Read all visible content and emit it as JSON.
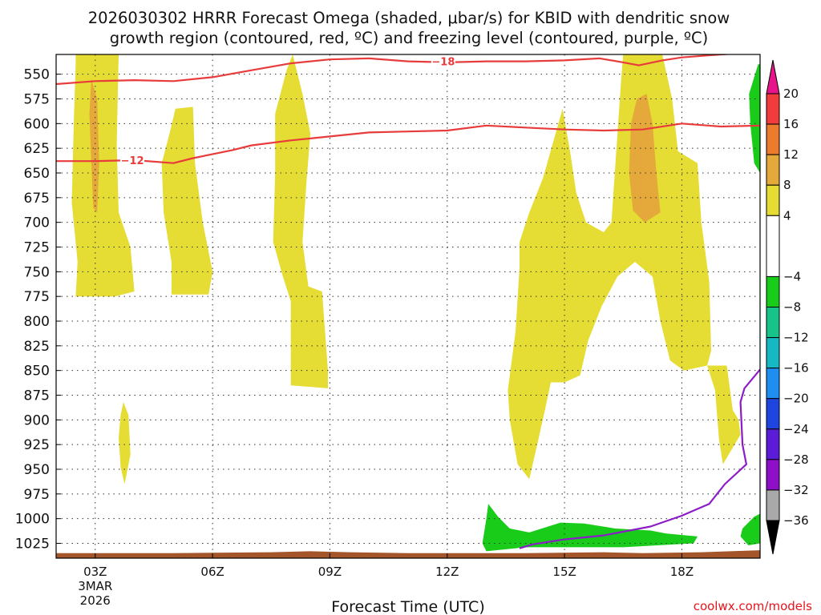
{
  "title_line1": "2026030302 HRRR Forecast Omega (shaded, μbar/s) for KBID with dendritic snow",
  "title_line2": "growth region (contoured, red, ºC) and freezing level (contoured, purple, ºC)",
  "credit": "coolwx.com/models",
  "chart_data": {
    "type": "heatmap",
    "title": "2026030302 HRRR Forecast Omega (shaded, μbar/s) for KBID with dendritic snow growth region (contoured, red, ºC) and freezing level (contoured, purple, ºC)",
    "xlabel": "Forecast Time (UTC)",
    "ylabel": "",
    "x_unit": "hours UTC",
    "xlim": [
      2.0,
      20.0
    ],
    "x_ticks": [
      {
        "x": 3,
        "label": "03Z",
        "sub1": "3MAR",
        "sub2": "2026"
      },
      {
        "x": 6,
        "label": "06Z"
      },
      {
        "x": 9,
        "label": "09Z"
      },
      {
        "x": 12,
        "label": "12Z"
      },
      {
        "x": 15,
        "label": "15Z"
      },
      {
        "x": 18,
        "label": "18Z"
      }
    ],
    "y_unit": "hPa",
    "ylim": [
      1040,
      530
    ],
    "y_ticks": [
      550,
      575,
      600,
      625,
      650,
      675,
      700,
      725,
      750,
      775,
      800,
      825,
      850,
      875,
      900,
      925,
      950,
      975,
      1000,
      1025
    ],
    "grid": true,
    "colorbar": {
      "labels": [
        "20",
        "16",
        "12",
        "8",
        "4",
        "−4",
        "−8",
        "−12",
        "−16",
        "−20",
        "−24",
        "−28",
        "−32",
        "−36"
      ],
      "bands": [
        {
          "from": 16,
          "to": 20,
          "color": "#f03c3c"
        },
        {
          "from": 12,
          "to": 16,
          "color": "#ec7b2e"
        },
        {
          "from": 8,
          "to": 12,
          "color": "#e4a93a"
        },
        {
          "from": 4,
          "to": 8,
          "color": "#e5dc34"
        },
        {
          "from": -4,
          "to": 4,
          "color": "#ffffff"
        },
        {
          "from": -8,
          "to": -4,
          "color": "#19cc19"
        },
        {
          "from": -12,
          "to": -8,
          "color": "#18c38a"
        },
        {
          "from": -16,
          "to": -12,
          "color": "#16b8c4"
        },
        {
          "from": -20,
          "to": -16,
          "color": "#1e8ef0"
        },
        {
          "from": -24,
          "to": -20,
          "color": "#1f45e0"
        },
        {
          "from": -28,
          "to": -24,
          "color": "#5a1cd6"
        },
        {
          "from": -32,
          "to": -28,
          "color": "#8e0fc8"
        },
        {
          "from": -36,
          "to": -32,
          "color": "#a9a9a9"
        }
      ],
      "top_arrow_color": "#e8158a",
      "bottom_arrow_color": "#000000"
    },
    "shaded_regions": [
      {
        "level": 4,
        "color": "#e5dc34",
        "points": [
          [
            2.5,
            530
          ],
          [
            3.6,
            530
          ],
          [
            3.55,
            620
          ],
          [
            3.6,
            690
          ],
          [
            3.9,
            725
          ],
          [
            4.0,
            770
          ],
          [
            3.5,
            775
          ],
          [
            2.5,
            775
          ],
          [
            2.55,
            740
          ],
          [
            2.4,
            680
          ],
          [
            2.45,
            600
          ],
          [
            2.5,
            540
          ]
        ]
      },
      {
        "level": 8,
        "color": "#e4a93a",
        "points": [
          [
            2.9,
            555
          ],
          [
            3.05,
            575
          ],
          [
            3.1,
            640
          ],
          [
            3.05,
            690
          ],
          [
            2.95,
            685
          ],
          [
            2.9,
            640
          ],
          [
            2.85,
            590
          ]
        ]
      },
      {
        "level": 4,
        "color": "#e5dc34",
        "points": [
          [
            3.72,
            882
          ],
          [
            3.85,
            895
          ],
          [
            3.9,
            935
          ],
          [
            3.75,
            965
          ],
          [
            3.65,
            948
          ],
          [
            3.6,
            918
          ],
          [
            3.65,
            895
          ]
        ]
      },
      {
        "level": 4,
        "color": "#e5dc34",
        "points": [
          [
            5.05,
            585
          ],
          [
            5.5,
            583
          ],
          [
            5.55,
            640
          ],
          [
            5.75,
            700
          ],
          [
            6.0,
            750
          ],
          [
            5.9,
            773
          ],
          [
            4.95,
            773
          ],
          [
            4.95,
            740
          ],
          [
            4.75,
            690
          ],
          [
            4.7,
            640
          ],
          [
            4.9,
            610
          ]
        ]
      },
      {
        "level": 4,
        "color": "#e5dc34",
        "points": [
          [
            8.05,
            530
          ],
          [
            8.3,
            570
          ],
          [
            8.5,
            610
          ],
          [
            8.4,
            660
          ],
          [
            8.3,
            720
          ],
          [
            8.45,
            765
          ],
          [
            8.8,
            770
          ],
          [
            8.95,
            850
          ],
          [
            8.95,
            868
          ],
          [
            8.0,
            865
          ],
          [
            8.0,
            780
          ],
          [
            7.8,
            755
          ],
          [
            7.55,
            720
          ],
          [
            7.6,
            650
          ],
          [
            7.6,
            590
          ],
          [
            7.9,
            545
          ]
        ]
      },
      {
        "level": 4,
        "color": "#e5dc34",
        "points": [
          [
            14.95,
            585
          ],
          [
            15.15,
            630
          ],
          [
            15.3,
            670
          ],
          [
            15.55,
            700
          ],
          [
            16.0,
            710
          ],
          [
            16.2,
            700
          ],
          [
            16.45,
            555
          ],
          [
            16.5,
            530
          ],
          [
            17.5,
            530
          ],
          [
            17.75,
            575
          ],
          [
            17.9,
            628
          ],
          [
            18.4,
            640
          ],
          [
            18.5,
            700
          ],
          [
            18.7,
            760
          ],
          [
            18.75,
            830
          ],
          [
            18.65,
            845
          ],
          [
            18.05,
            850
          ],
          [
            17.7,
            840
          ],
          [
            17.45,
            800
          ],
          [
            17.25,
            755
          ],
          [
            16.8,
            740
          ],
          [
            16.35,
            755
          ],
          [
            15.95,
            785
          ],
          [
            15.6,
            820
          ],
          [
            15.4,
            855
          ],
          [
            15.0,
            862
          ],
          [
            14.65,
            862
          ],
          [
            14.5,
            890
          ],
          [
            14.3,
            925
          ],
          [
            14.1,
            960
          ],
          [
            13.8,
            945
          ],
          [
            13.6,
            900
          ],
          [
            13.55,
            870
          ],
          [
            13.75,
            810
          ],
          [
            13.85,
            745
          ],
          [
            13.85,
            720
          ],
          [
            14.1,
            690
          ],
          [
            14.45,
            655
          ]
        ]
      },
      {
        "level": 8,
        "color": "#e4a93a",
        "points": [
          [
            17.1,
            570
          ],
          [
            17.25,
            600
          ],
          [
            17.35,
            650
          ],
          [
            17.45,
            690
          ],
          [
            17.05,
            700
          ],
          [
            16.75,
            688
          ],
          [
            16.65,
            650
          ],
          [
            16.7,
            600
          ],
          [
            16.85,
            575
          ]
        ]
      },
      {
        "level": 4,
        "color": "#e5dc34",
        "points": [
          [
            18.65,
            845
          ],
          [
            19.15,
            845
          ],
          [
            19.3,
            890
          ],
          [
            19.45,
            900
          ],
          [
            19.5,
            915
          ],
          [
            19.05,
            945
          ],
          [
            18.95,
            920
          ],
          [
            18.85,
            870
          ]
        ]
      },
      {
        "level": -4,
        "color": "#19cc19",
        "points": [
          [
            19.95,
            540
          ],
          [
            20.0,
            540
          ],
          [
            20.0,
            650
          ],
          [
            19.85,
            640
          ],
          [
            19.75,
            600
          ],
          [
            19.72,
            570
          ]
        ]
      },
      {
        "level": -4,
        "color": "#19cc19",
        "points": [
          [
            13.0,
            1000
          ],
          [
            13.05,
            985
          ],
          [
            13.3,
            998
          ],
          [
            13.6,
            1010
          ],
          [
            14.1,
            1014
          ],
          [
            14.9,
            1004
          ],
          [
            15.5,
            1005
          ],
          [
            16.3,
            1010
          ],
          [
            17.2,
            1012
          ],
          [
            17.6,
            1015
          ],
          [
            18.4,
            1018
          ],
          [
            18.3,
            1025
          ],
          [
            16.5,
            1029
          ],
          [
            14.0,
            1029
          ],
          [
            13.0,
            1033
          ],
          [
            12.9,
            1025
          ]
        ]
      },
      {
        "level": -4,
        "color": "#19cc19",
        "points": [
          [
            19.55,
            1010
          ],
          [
            19.85,
            998
          ],
          [
            20.0,
            995
          ],
          [
            20.0,
            1025
          ],
          [
            19.7,
            1027
          ],
          [
            19.5,
            1018
          ]
        ]
      }
    ],
    "terrain": {
      "color": "#a4562a",
      "points": [
        [
          2.0,
          1035
        ],
        [
          5.0,
          1035
        ],
        [
          7.5,
          1034
        ],
        [
          8.5,
          1033
        ],
        [
          9.5,
          1034
        ],
        [
          11.0,
          1035
        ],
        [
          14.0,
          1035
        ],
        [
          16.0,
          1034
        ],
        [
          17.0,
          1035
        ],
        [
          18.5,
          1034
        ],
        [
          20.0,
          1032
        ],
        [
          20.0,
          1040
        ],
        [
          2.0,
          1040
        ]
      ]
    },
    "contours": [
      {
        "name": "-18 ºC",
        "label": "−18",
        "color": "#e83b3b",
        "label_at": [
          11.9,
          537
        ],
        "points": [
          [
            2.0,
            560
          ],
          [
            3.0,
            557
          ],
          [
            4.0,
            556
          ],
          [
            5.0,
            557
          ],
          [
            6.0,
            553
          ],
          [
            7.0,
            546
          ],
          [
            8.0,
            539
          ],
          [
            9.0,
            535
          ],
          [
            10.0,
            534
          ],
          [
            11.0,
            537
          ],
          [
            12.0,
            538
          ],
          [
            13.0,
            537
          ],
          [
            14.0,
            537
          ],
          [
            15.0,
            536
          ],
          [
            15.9,
            534
          ],
          [
            16.5,
            538
          ],
          [
            16.9,
            541
          ],
          [
            17.5,
            536
          ],
          [
            18.0,
            533
          ],
          [
            19.0,
            530
          ],
          [
            19.4,
            529
          ]
        ]
      },
      {
        "name": "-12 ºC",
        "label": "−12",
        "color": "#e83b3b",
        "label_at": [
          3.95,
          637
        ],
        "points": [
          [
            2.0,
            638
          ],
          [
            3.0,
            638
          ],
          [
            4.0,
            637
          ],
          [
            5.0,
            640
          ],
          [
            5.5,
            635
          ],
          [
            6.5,
            627
          ],
          [
            7.0,
            622
          ],
          [
            8.0,
            617
          ],
          [
            9.0,
            613
          ],
          [
            10.0,
            609
          ],
          [
            11.0,
            608
          ],
          [
            12.0,
            607
          ],
          [
            13.0,
            602
          ],
          [
            14.0,
            604
          ],
          [
            15.0,
            606
          ],
          [
            16.0,
            607
          ],
          [
            17.0,
            606
          ],
          [
            18.0,
            600
          ],
          [
            19.0,
            603
          ],
          [
            20.0,
            602
          ]
        ]
      },
      {
        "name": "0 ºC",
        "color": "#8c1cc8",
        "points": [
          [
            20.0,
            849
          ],
          [
            19.6,
            868
          ],
          [
            19.5,
            882
          ],
          [
            19.55,
            925
          ],
          [
            19.65,
            945
          ],
          [
            19.1,
            965
          ],
          [
            18.7,
            985
          ],
          [
            18.0,
            997
          ],
          [
            17.2,
            1008
          ],
          [
            16.0,
            1017
          ],
          [
            15.0,
            1021
          ],
          [
            14.2,
            1026
          ],
          [
            13.85,
            1030
          ]
        ]
      }
    ]
  }
}
